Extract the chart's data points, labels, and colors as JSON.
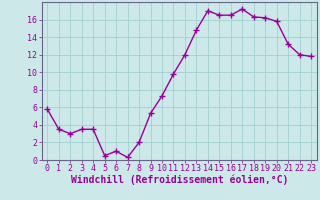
{
  "x": [
    0,
    1,
    2,
    3,
    4,
    5,
    6,
    7,
    8,
    9,
    10,
    11,
    12,
    13,
    14,
    15,
    16,
    17,
    18,
    19,
    20,
    21,
    22,
    23
  ],
  "y": [
    5.8,
    3.5,
    3.0,
    3.5,
    3.5,
    0.5,
    1.0,
    0.3,
    2.0,
    5.3,
    7.3,
    9.8,
    12.0,
    14.8,
    17.0,
    16.5,
    16.5,
    17.2,
    16.3,
    16.2,
    15.8,
    13.2,
    12.0,
    11.8
  ],
  "line_color": "#990099",
  "marker": "+",
  "marker_size": 4,
  "bg_color": "#cce8e8",
  "grid_color": "#99cccc",
  "xlabel": "Windchill (Refroidissement éolien,°C)",
  "xlabel_color": "#990099",
  "xlabel_fontsize": 7,
  "ylim": [
    0,
    18
  ],
  "yticks": [
    0,
    2,
    4,
    6,
    8,
    10,
    12,
    14,
    16
  ],
  "xticks": [
    0,
    1,
    2,
    3,
    4,
    5,
    6,
    7,
    8,
    9,
    10,
    11,
    12,
    13,
    14,
    15,
    16,
    17,
    18,
    19,
    20,
    21,
    22,
    23
  ],
  "tick_fontsize": 6,
  "line_width": 1.0,
  "tick_color": "#990099",
  "spine_color": "#666688"
}
